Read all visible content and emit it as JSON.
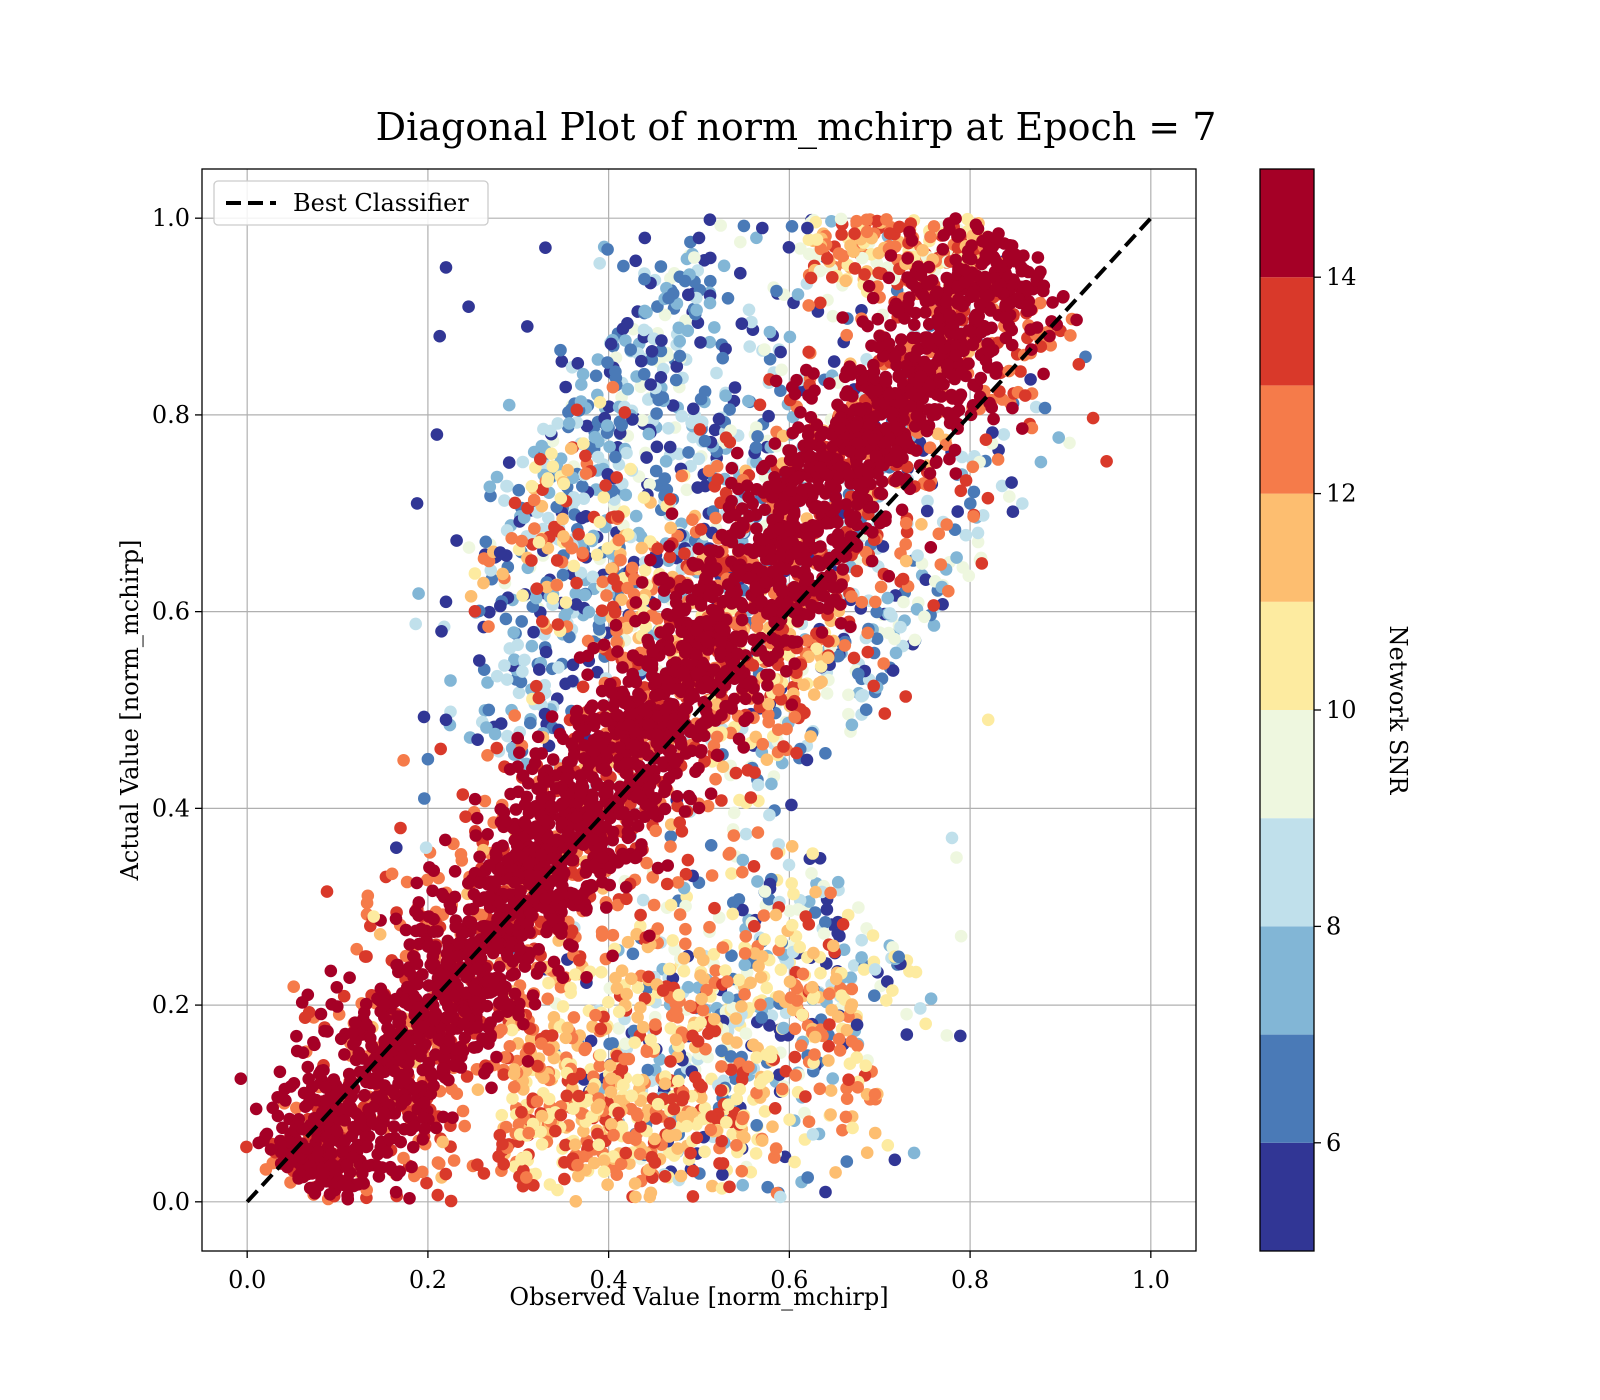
{
  "chart_data": {
    "type": "scatter",
    "title": "Diagonal Plot of norm_mchirp at Epoch = 7",
    "xlabel": "Observed Value [norm_mchirp]",
    "ylabel": "Actual Value [norm_mchirp]",
    "xlim": [
      -0.05,
      1.05
    ],
    "ylim": [
      -0.05,
      1.05
    ],
    "xticks": [
      0.0,
      0.2,
      0.4,
      0.6,
      0.8,
      1.0
    ],
    "yticks": [
      0.0,
      0.2,
      0.4,
      0.6,
      0.8,
      1.0
    ],
    "xtick_labels": [
      "0.0",
      "0.2",
      "0.4",
      "0.6",
      "0.8",
      "1.0"
    ],
    "ytick_labels": [
      "0.0",
      "0.2",
      "0.4",
      "0.6",
      "0.8",
      "1.0"
    ],
    "grid": true,
    "legend": {
      "placement": "top-left",
      "entries": [
        "Best Classifier"
      ]
    },
    "reference_line": {
      "name": "Best Classifier",
      "style": "dashed",
      "color": "#000000",
      "x": [
        0.0,
        1.0
      ],
      "y": [
        0.0,
        1.0
      ]
    },
    "colorbar": {
      "label": "Network SNR",
      "range": [
        5,
        15
      ],
      "ticks": [
        6,
        8,
        10,
        12,
        14
      ],
      "tick_labels": [
        "6",
        "8",
        "10",
        "12",
        "14"
      ],
      "bins": [
        {
          "from": 5,
          "to": 6,
          "color": "#313695"
        },
        {
          "from": 6,
          "to": 7,
          "color": "#4a7ab7"
        },
        {
          "from": 7,
          "to": 8,
          "color": "#82b6d6"
        },
        {
          "from": 8,
          "to": 9,
          "color": "#c0e0eb"
        },
        {
          "from": 9,
          "to": 10,
          "color": "#eef7df"
        },
        {
          "from": 10,
          "to": 11,
          "color": "#fdeba0"
        },
        {
          "from": 11,
          "to": 12,
          "color": "#fdbe70"
        },
        {
          "from": 12,
          "to": 13,
          "color": "#f57b4a"
        },
        {
          "from": 13,
          "to": 14,
          "color": "#d9392a"
        },
        {
          "from": 14,
          "to": 15,
          "color": "#a50026"
        }
      ]
    },
    "points": [
      {
        "x": 0.22,
        "y": 0.95,
        "snr": 5.2
      },
      {
        "x": 0.245,
        "y": 0.91,
        "snr": 5.4
      },
      {
        "x": 0.213,
        "y": 0.88,
        "snr": 5.3
      },
      {
        "x": 0.21,
        "y": 0.78,
        "snr": 5.1
      },
      {
        "x": 0.188,
        "y": 0.71,
        "snr": 5.5
      },
      {
        "x": 0.165,
        "y": 0.36,
        "snr": 5.6
      },
      {
        "x": 0.22,
        "y": 0.61,
        "snr": 5.3
      },
      {
        "x": 0.215,
        "y": 0.58,
        "snr": 5.8
      },
      {
        "x": 0.22,
        "y": 0.49,
        "snr": 5.4
      },
      {
        "x": 0.2,
        "y": 0.45,
        "snr": 6.4
      },
      {
        "x": 0.196,
        "y": 0.41,
        "snr": 6.8
      },
      {
        "x": 0.225,
        "y": 0.53,
        "snr": 7.6
      },
      {
        "x": 0.198,
        "y": 0.36,
        "snr": 8.6
      },
      {
        "x": 0.14,
        "y": 0.29,
        "snr": 10.3
      },
      {
        "x": 0.64,
        "y": 0.01,
        "snr": 5.3
      },
      {
        "x": 0.59,
        "y": 0.005,
        "snr": 8.7
      },
      {
        "x": 0.695,
        "y": 0.07,
        "snr": 11.6
      },
      {
        "x": 0.82,
        "y": 0.49,
        "snr": 10.4
      },
      {
        "x": 0.79,
        "y": 0.27,
        "snr": 9.5
      },
      {
        "x": 0.785,
        "y": 0.35,
        "snr": 9.8
      },
      {
        "x": 0.78,
        "y": 0.37,
        "snr": 8.6
      },
      {
        "x": 0.73,
        "y": 0.17,
        "snr": 5.3
      },
      {
        "x": 0.675,
        "y": 0.18,
        "snr": 5.4
      },
      {
        "x": 0.875,
        "y": 0.96,
        "snr": 14.6
      },
      {
        "x": 0.57,
        "y": 0.99,
        "snr": 5.2
      },
      {
        "x": 0.5,
        "y": 0.98,
        "snr": 5.5
      },
      {
        "x": 0.44,
        "y": 0.98,
        "snr": 5.7
      },
      {
        "x": 0.62,
        "y": 0.99,
        "snr": 5.4
      },
      {
        "x": 0.33,
        "y": 0.97,
        "snr": 5.4
      },
      {
        "x": 0.31,
        "y": 0.89,
        "snr": 5.3
      },
      {
        "x": 0.29,
        "y": 0.81,
        "snr": 7.2
      },
      {
        "x": 0.28,
        "y": 0.66,
        "snr": 5.6
      }
    ],
    "clusters": [
      {
        "x0": 0.06,
        "y0": 0.02,
        "x1": 0.85,
        "y1": 0.97,
        "width": 0.04,
        "n": 2600,
        "snr": [
          14,
          15
        ]
      },
      {
        "x0": 0.06,
        "y0": 0.0,
        "x1": 0.85,
        "y1": 0.95,
        "width": 0.07,
        "n": 1000,
        "snr": [
          11.8,
          14
        ]
      },
      {
        "x0": 0.38,
        "y0": 0.85,
        "x1": 0.73,
        "y1": 0.55,
        "width": 0.14,
        "n": 750,
        "snr": [
          5,
          10
        ]
      },
      {
        "x0": 0.28,
        "y0": 0.45,
        "x1": 0.47,
        "y1": 0.95,
        "width": 0.05,
        "n": 320,
        "snr": [
          5,
          9
        ]
      },
      {
        "x0": 0.3,
        "y0": 0.12,
        "x1": 0.68,
        "y1": 0.2,
        "width": 0.07,
        "n": 480,
        "snr": [
          10,
          13.5
        ]
      },
      {
        "x0": 0.42,
        "y0": 0.06,
        "x1": 0.68,
        "y1": 0.3,
        "width": 0.08,
        "n": 420,
        "snr": [
          5,
          11
        ]
      },
      {
        "x0": 0.3,
        "y0": 0.72,
        "x1": 0.62,
        "y1": 0.5,
        "width": 0.06,
        "n": 320,
        "snr": [
          10,
          14
        ]
      },
      {
        "x0": 0.62,
        "y0": 0.97,
        "x1": 0.82,
        "y1": 0.97,
        "width": 0.02,
        "n": 200,
        "snr": [
          9,
          14
        ]
      },
      {
        "x0": 0.28,
        "y0": 0.08,
        "x1": 0.55,
        "y1": 0.06,
        "width": 0.04,
        "n": 250,
        "snr": [
          10,
          14
        ]
      }
    ]
  }
}
